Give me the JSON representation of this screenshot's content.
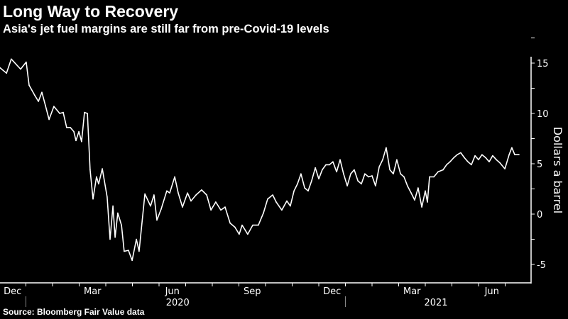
{
  "chart_data": {
    "type": "line",
    "title": "Long Way to Recovery",
    "subtitle": "Asia's jet fuel margins are still far from pre-Covid-19 levels",
    "source": "Source: Bloomberg Fair Value data",
    "ylabel": "Dollars a barrel",
    "xlabel": "",
    "x_units": "months since Dec 1, 2019",
    "ylim": [
      -6.8,
      17.5
    ],
    "xlim": [
      0,
      19.95
    ],
    "yticks": [
      15,
      10,
      5,
      0,
      -5
    ],
    "xtick_labels": [
      {
        "label": "Dec",
        "t": 0.5
      },
      {
        "label": "Mar",
        "t": 3.5
      },
      {
        "label": "Jun",
        "t": 6.5
      },
      {
        "label": "Sep",
        "t": 9.5
      },
      {
        "label": "Dec",
        "t": 12.5
      },
      {
        "label": "Mar",
        "t": 15.5
      },
      {
        "label": "Jun",
        "t": 18.5
      }
    ],
    "year_labels": [
      {
        "label": "2020",
        "t": 6.7
      },
      {
        "label": "2021",
        "t": 16.4
      }
    ],
    "year_separators": [
      1,
      13
    ],
    "grid": false,
    "color": "#ffffff",
    "series": [
      {
        "name": "Asia jet fuel margin",
        "t": [
          0,
          0.27,
          0.45,
          0.8,
          1.01,
          1.12,
          1.33,
          1.47,
          1.6,
          1.73,
          1.87,
          2.05,
          2.27,
          2.4,
          2.53,
          2.67,
          2.8,
          2.88,
          2.99,
          3.09,
          3.2,
          3.31,
          3.41,
          3.52,
          3.65,
          3.73,
          3.87,
          4.05,
          4.16,
          4.27,
          4.35,
          4.45,
          4.59,
          4.69,
          4.85,
          4.99,
          5.15,
          5.25,
          5.47,
          5.68,
          5.81,
          5.92,
          6.08,
          6.29,
          6.4,
          6.59,
          6.72,
          6.88,
          7.07,
          7.2,
          7.39,
          7.6,
          7.79,
          7.95,
          8.13,
          8.32,
          8.48,
          8.67,
          8.85,
          9.01,
          9.12,
          9.33,
          9.52,
          9.73,
          9.92,
          10.08,
          10.27,
          10.4,
          10.61,
          10.8,
          10.93,
          11.07,
          11.2,
          11.33,
          11.47,
          11.6,
          11.73,
          11.87,
          12.0,
          12.13,
          12.27,
          12.4,
          12.53,
          12.67,
          12.8,
          12.93,
          13.07,
          13.2,
          13.33,
          13.47,
          13.6,
          13.73,
          13.87,
          14.0,
          14.13,
          14.27,
          14.4,
          14.53,
          14.67,
          14.8,
          14.93,
          15.07,
          15.2,
          15.33,
          15.47,
          15.6,
          15.73,
          15.87,
          16.0,
          16.08,
          16.16,
          16.32,
          16.48,
          16.67,
          16.8,
          16.93,
          17.07,
          17.2,
          17.33,
          17.47,
          17.6,
          17.73,
          17.87,
          18.0,
          18.13,
          18.27,
          18.4,
          18.53,
          18.67,
          18.8,
          18.99,
          19.15,
          19.25,
          19.36,
          19.52
        ],
        "values": [
          14.6,
          14.0,
          15.4,
          14.4,
          15.1,
          12.8,
          11.8,
          11.2,
          12.1,
          10.8,
          9.4,
          10.7,
          10.0,
          10.1,
          8.6,
          8.6,
          8.2,
          7.3,
          8.2,
          7.2,
          10.1,
          10.0,
          4.4,
          1.5,
          3.7,
          3.0,
          4.5,
          1.7,
          -2.5,
          0.8,
          -2.3,
          0.1,
          -1.1,
          -3.7,
          -3.6,
          -4.6,
          -2.5,
          -3.7,
          2.0,
          0.8,
          1.9,
          -0.6,
          0.5,
          2.3,
          2.1,
          3.7,
          2.1,
          0.7,
          2.1,
          1.3,
          1.9,
          2.4,
          1.9,
          0.4,
          1.2,
          0.4,
          0.7,
          -0.9,
          -1.3,
          -2.0,
          -1.1,
          -2.0,
          -1.1,
          -1.1,
          0.1,
          1.5,
          1.9,
          1.2,
          0.4,
          1.3,
          0.8,
          2.3,
          3.0,
          4.0,
          2.6,
          2.3,
          3.3,
          4.6,
          3.5,
          4.4,
          4.9,
          4.9,
          5.2,
          4.2,
          5.4,
          4.0,
          2.8,
          4.0,
          4.4,
          3.3,
          3.0,
          4.0,
          3.7,
          3.8,
          2.8,
          4.7,
          5.4,
          6.6,
          4.4,
          4.0,
          5.4,
          4.0,
          3.7,
          2.8,
          2.1,
          1.4,
          2.6,
          0.7,
          2.3,
          1.2,
          3.7,
          3.7,
          4.2,
          4.4,
          4.9,
          5.2,
          5.6,
          5.9,
          6.1,
          5.6,
          5.2,
          4.9,
          5.8,
          5.4,
          5.9,
          5.6,
          5.2,
          5.8,
          5.4,
          5.1,
          4.5,
          5.9,
          6.6,
          5.9,
          5.9
        ]
      }
    ]
  }
}
